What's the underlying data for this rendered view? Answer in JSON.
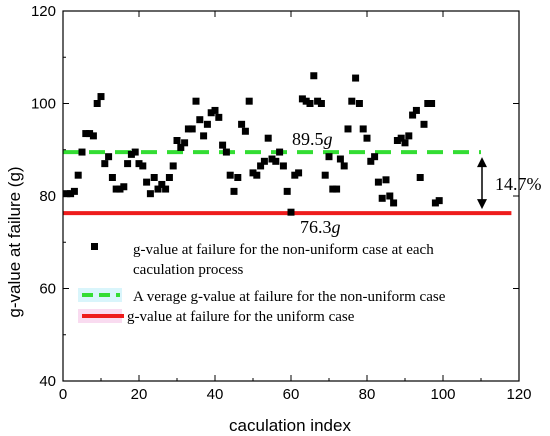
{
  "chart_data": {
    "type": "scatter",
    "title": "",
    "xlabel": "caculation index",
    "ylabel": "g-value at failure (g)",
    "xlim": [
      0,
      120
    ],
    "ylim": [
      40,
      120
    ],
    "xticks": [
      "0",
      "20",
      "40",
      "60",
      "80",
      "100",
      "120"
    ],
    "yticks": [
      "40",
      "60",
      "80",
      "100",
      "120"
    ],
    "grid": false,
    "legend_position": "bottom-center",
    "series": [
      {
        "name": "g-value at failure for the non-uniform case at each caculation process",
        "kind": "scatter",
        "color": "#000000",
        "points": [
          [
            1,
            80.5
          ],
          [
            2,
            80.5
          ],
          [
            3,
            81
          ],
          [
            4,
            84.5
          ],
          [
            5,
            89.5
          ],
          [
            6,
            93.5
          ],
          [
            7,
            93.5
          ],
          [
            8,
            93
          ],
          [
            9,
            100
          ],
          [
            10,
            101.5
          ],
          [
            11,
            87
          ],
          [
            12,
            88.5
          ],
          [
            13,
            84
          ],
          [
            14,
            81.5
          ],
          [
            15,
            81.5
          ],
          [
            16,
            82
          ],
          [
            17,
            87
          ],
          [
            18,
            89
          ],
          [
            19,
            89.5
          ],
          [
            20,
            87
          ],
          [
            21,
            86.5
          ],
          [
            22,
            83
          ],
          [
            23,
            80.5
          ],
          [
            24,
            84
          ],
          [
            25,
            81.5
          ],
          [
            26,
            82.5
          ],
          [
            27,
            81.5
          ],
          [
            28,
            84
          ],
          [
            29,
            86.5
          ],
          [
            30,
            92
          ],
          [
            31,
            90.5
          ],
          [
            32,
            91.5
          ],
          [
            33,
            94.5
          ],
          [
            34,
            94.5
          ],
          [
            35,
            100.5
          ],
          [
            36,
            96.5
          ],
          [
            37,
            93
          ],
          [
            38,
            95.5
          ],
          [
            39,
            98
          ],
          [
            40,
            98.5
          ],
          [
            41,
            97
          ],
          [
            42,
            91
          ],
          [
            43,
            89.5
          ],
          [
            44,
            84.5
          ],
          [
            45,
            81
          ],
          [
            46,
            84
          ],
          [
            47,
            95.5
          ],
          [
            48,
            94
          ],
          [
            49,
            100.5
          ],
          [
            50,
            85
          ],
          [
            51,
            84.5
          ],
          [
            52,
            86.5
          ],
          [
            53,
            87.5
          ],
          [
            54,
            92.5
          ],
          [
            55,
            88
          ],
          [
            56,
            87.5
          ],
          [
            57,
            89.5
          ],
          [
            58,
            86.5
          ],
          [
            59,
            81
          ],
          [
            60,
            76.5
          ],
          [
            61,
            84.5
          ],
          [
            62,
            85
          ],
          [
            63,
            101
          ],
          [
            64,
            100.5
          ],
          [
            65,
            100
          ],
          [
            66,
            106
          ],
          [
            67,
            100.5
          ],
          [
            68,
            100
          ],
          [
            69,
            84.5
          ],
          [
            70,
            88.5
          ],
          [
            71,
            81.5
          ],
          [
            72,
            81.5
          ],
          [
            73,
            88
          ],
          [
            74,
            86.5
          ],
          [
            75,
            94.5
          ],
          [
            76,
            100.5
          ],
          [
            77,
            105.5
          ],
          [
            78,
            100
          ],
          [
            79,
            94.5
          ],
          [
            80,
            92.5
          ],
          [
            81,
            87.5
          ],
          [
            82,
            88.5
          ],
          [
            83,
            83
          ],
          [
            84,
            79.5
          ],
          [
            85,
            83.5
          ],
          [
            86,
            80
          ],
          [
            87,
            78.5
          ],
          [
            88,
            92
          ],
          [
            89,
            92.5
          ],
          [
            90,
            91.5
          ],
          [
            91,
            93
          ],
          [
            92,
            97.5
          ],
          [
            93,
            98.5
          ],
          [
            94,
            84
          ],
          [
            95,
            95.5
          ],
          [
            96,
            100
          ],
          [
            97,
            100
          ],
          [
            98,
            78.5
          ],
          [
            99,
            79
          ]
        ]
      },
      {
        "name": "A verage g-value at failure for the non-uniform case",
        "kind": "hline",
        "y": 89.5,
        "x_range": [
          0,
          110
        ],
        "color": "#33dd33",
        "dashed": true
      },
      {
        "name": "g-value at failure for the uniform case",
        "kind": "hline",
        "y": 76.3,
        "x_range": [
          0,
          118
        ],
        "color": "#ee1c1c",
        "dashed": false
      }
    ],
    "annotations": {
      "avg_value": "89.5",
      "uniform_value": "76.3",
      "unit_symbol": "g",
      "difference": "14.7%"
    }
  }
}
